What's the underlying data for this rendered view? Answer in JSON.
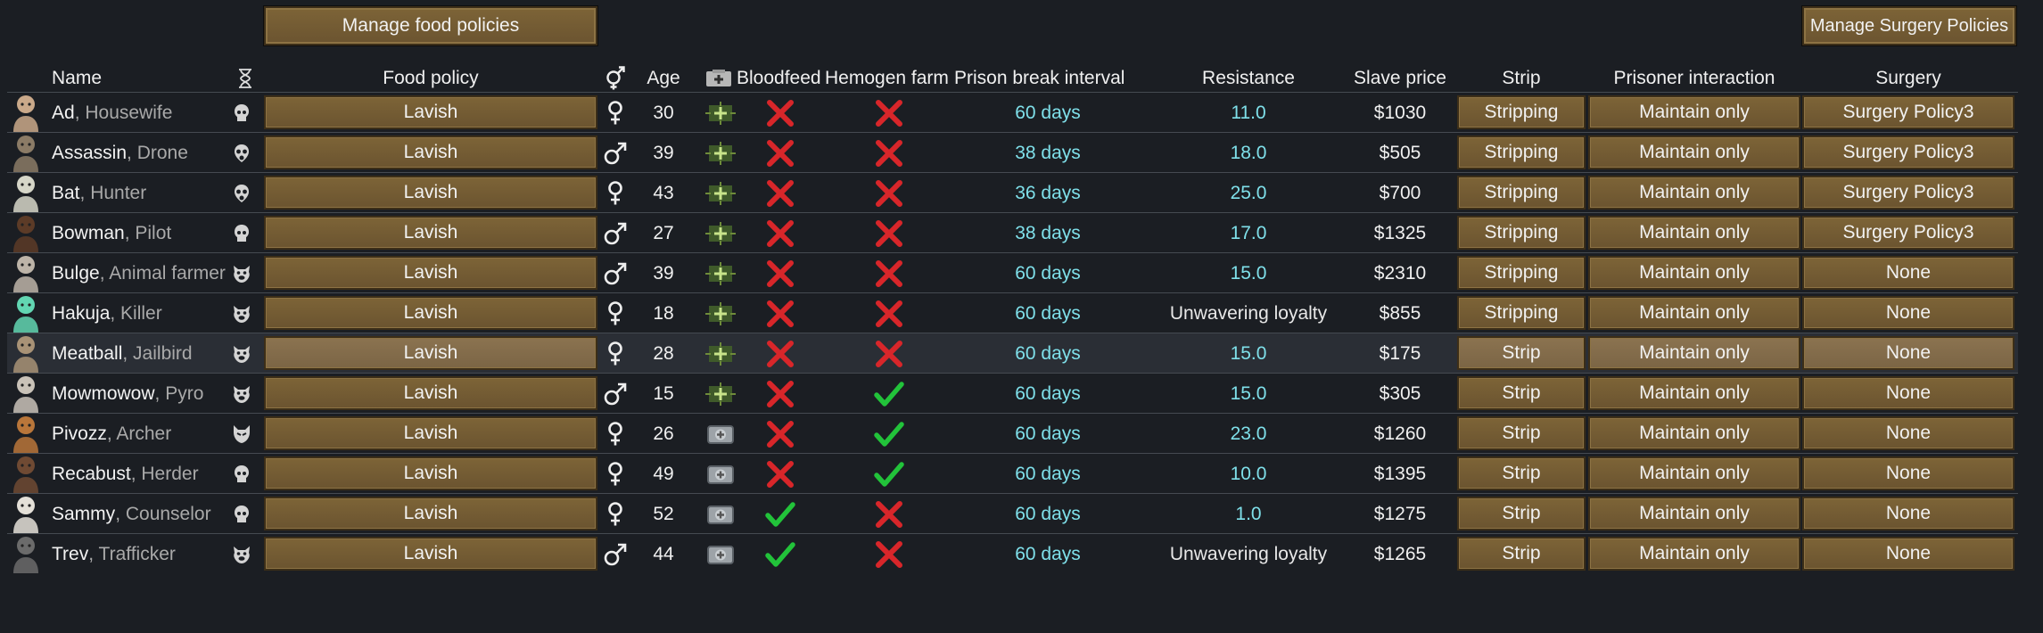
{
  "buttons": {
    "manage_food": "Manage food policies",
    "manage_surgery": "Manage Surgery Policies"
  },
  "headers": {
    "name": "Name",
    "food_policy": "Food policy",
    "age": "Age",
    "bloodfeed": "Bloodfeed",
    "hemogen_farm": "Hemogen farm",
    "prison_break_interval": "Prison break interval",
    "resistance": "Resistance",
    "slave_price": "Slave price",
    "strip": "Strip",
    "prisoner_interaction": "Prisoner interaction",
    "surgery": "Surgery"
  },
  "colors": {
    "check": "#22c33a",
    "cross": "#d8262a",
    "cyan_value": "#7fe0ea",
    "button": "#6b5430"
  },
  "rows": [
    {
      "name": "Ad",
      "title": "Housewife",
      "face": "skull-icon",
      "food": "Lavish",
      "gender": "female",
      "age": "30",
      "med": "green",
      "bloodfeed": "no",
      "hemogen": "no",
      "pbi": "60 days",
      "resistance": "11.0",
      "price": "$1030",
      "strip": "Stripping",
      "interaction": "Maintain only",
      "surgery": "Surgery Policy3"
    },
    {
      "name": "Assassin",
      "title": "Drone",
      "face": "gasmask-icon",
      "food": "Lavish",
      "gender": "male",
      "age": "39",
      "med": "green",
      "bloodfeed": "no",
      "hemogen": "no",
      "pbi": "38 days",
      "resistance": "18.0",
      "price": "$505",
      "strip": "Stripping",
      "interaction": "Maintain only",
      "surgery": "Surgery Policy3"
    },
    {
      "name": "Bat",
      "title": "Hunter",
      "face": "gasmask-icon",
      "food": "Lavish",
      "gender": "female",
      "age": "43",
      "med": "green",
      "bloodfeed": "no",
      "hemogen": "no",
      "pbi": "36 days",
      "resistance": "25.0",
      "price": "$700",
      "strip": "Stripping",
      "interaction": "Maintain only",
      "surgery": "Surgery Policy3"
    },
    {
      "name": "Bowman",
      "title": "Pilot",
      "face": "skull-icon",
      "food": "Lavish",
      "gender": "male",
      "age": "27",
      "med": "green",
      "bloodfeed": "no",
      "hemogen": "no",
      "pbi": "38 days",
      "resistance": "17.0",
      "price": "$1325",
      "strip": "Stripping",
      "interaction": "Maintain only",
      "surgery": "Surgery Policy3"
    },
    {
      "name": "Bulge",
      "title": "Animal farmer",
      "face": "pig-icon",
      "food": "Lavish",
      "gender": "male",
      "age": "39",
      "med": "green",
      "bloodfeed": "no",
      "hemogen": "no",
      "pbi": "60 days",
      "resistance": "15.0",
      "price": "$2310",
      "strip": "Stripping",
      "interaction": "Maintain only",
      "surgery": "None"
    },
    {
      "name": "Hakuja",
      "title": "Killer",
      "face": "pig-icon",
      "food": "Lavish",
      "gender": "female",
      "age": "18",
      "med": "green",
      "bloodfeed": "no",
      "hemogen": "no",
      "pbi": "60 days",
      "resistance": "Unwavering loyalty",
      "price": "$855",
      "strip": "Stripping",
      "interaction": "Maintain only",
      "surgery": "None"
    },
    {
      "name": "Meatball",
      "title": "Jailbird",
      "face": "pig-icon",
      "food": "Lavish",
      "gender": "female",
      "age": "28",
      "med": "green",
      "bloodfeed": "no",
      "hemogen": "no",
      "pbi": "60 days",
      "resistance": "15.0",
      "price": "$175",
      "strip": "Strip",
      "interaction": "Maintain only",
      "surgery": "None",
      "hl": true
    },
    {
      "name": "Mowmowow",
      "title": "Pyro",
      "face": "pig-icon",
      "food": "Lavish",
      "gender": "male",
      "age": "15",
      "med": "green",
      "bloodfeed": "no",
      "hemogen": "yes",
      "pbi": "60 days",
      "resistance": "15.0",
      "price": "$305",
      "strip": "Strip",
      "interaction": "Maintain only",
      "surgery": "None"
    },
    {
      "name": "Pivozz",
      "title": "Archer",
      "face": "impid-icon",
      "food": "Lavish",
      "gender": "female",
      "age": "26",
      "med": "grey",
      "bloodfeed": "no",
      "hemogen": "yes",
      "pbi": "60 days",
      "resistance": "23.0",
      "price": "$1260",
      "strip": "Strip",
      "interaction": "Maintain only",
      "surgery": "None"
    },
    {
      "name": "Recabust",
      "title": "Herder",
      "face": "skull-icon",
      "food": "Lavish",
      "gender": "female",
      "age": "49",
      "med": "grey",
      "bloodfeed": "no",
      "hemogen": "yes",
      "pbi": "60 days",
      "resistance": "10.0",
      "price": "$1395",
      "strip": "Strip",
      "interaction": "Maintain only",
      "surgery": "None"
    },
    {
      "name": "Sammy",
      "title": "Counselor",
      "face": "skull-icon",
      "food": "Lavish",
      "gender": "female",
      "age": "52",
      "med": "grey",
      "bloodfeed": "yes",
      "hemogen": "no",
      "pbi": "60 days",
      "resistance": "1.0",
      "price": "$1275",
      "strip": "Strip",
      "interaction": "Maintain only",
      "surgery": "None"
    },
    {
      "name": "Trev",
      "title": "Trafficker",
      "face": "pig-icon",
      "food": "Lavish",
      "gender": "male",
      "age": "44",
      "med": "grey",
      "bloodfeed": "yes",
      "hemogen": "no",
      "pbi": "60 days",
      "resistance": "Unwavering loyalty",
      "price": "$1265",
      "strip": "Strip",
      "interaction": "Maintain only",
      "surgery": "None"
    }
  ]
}
